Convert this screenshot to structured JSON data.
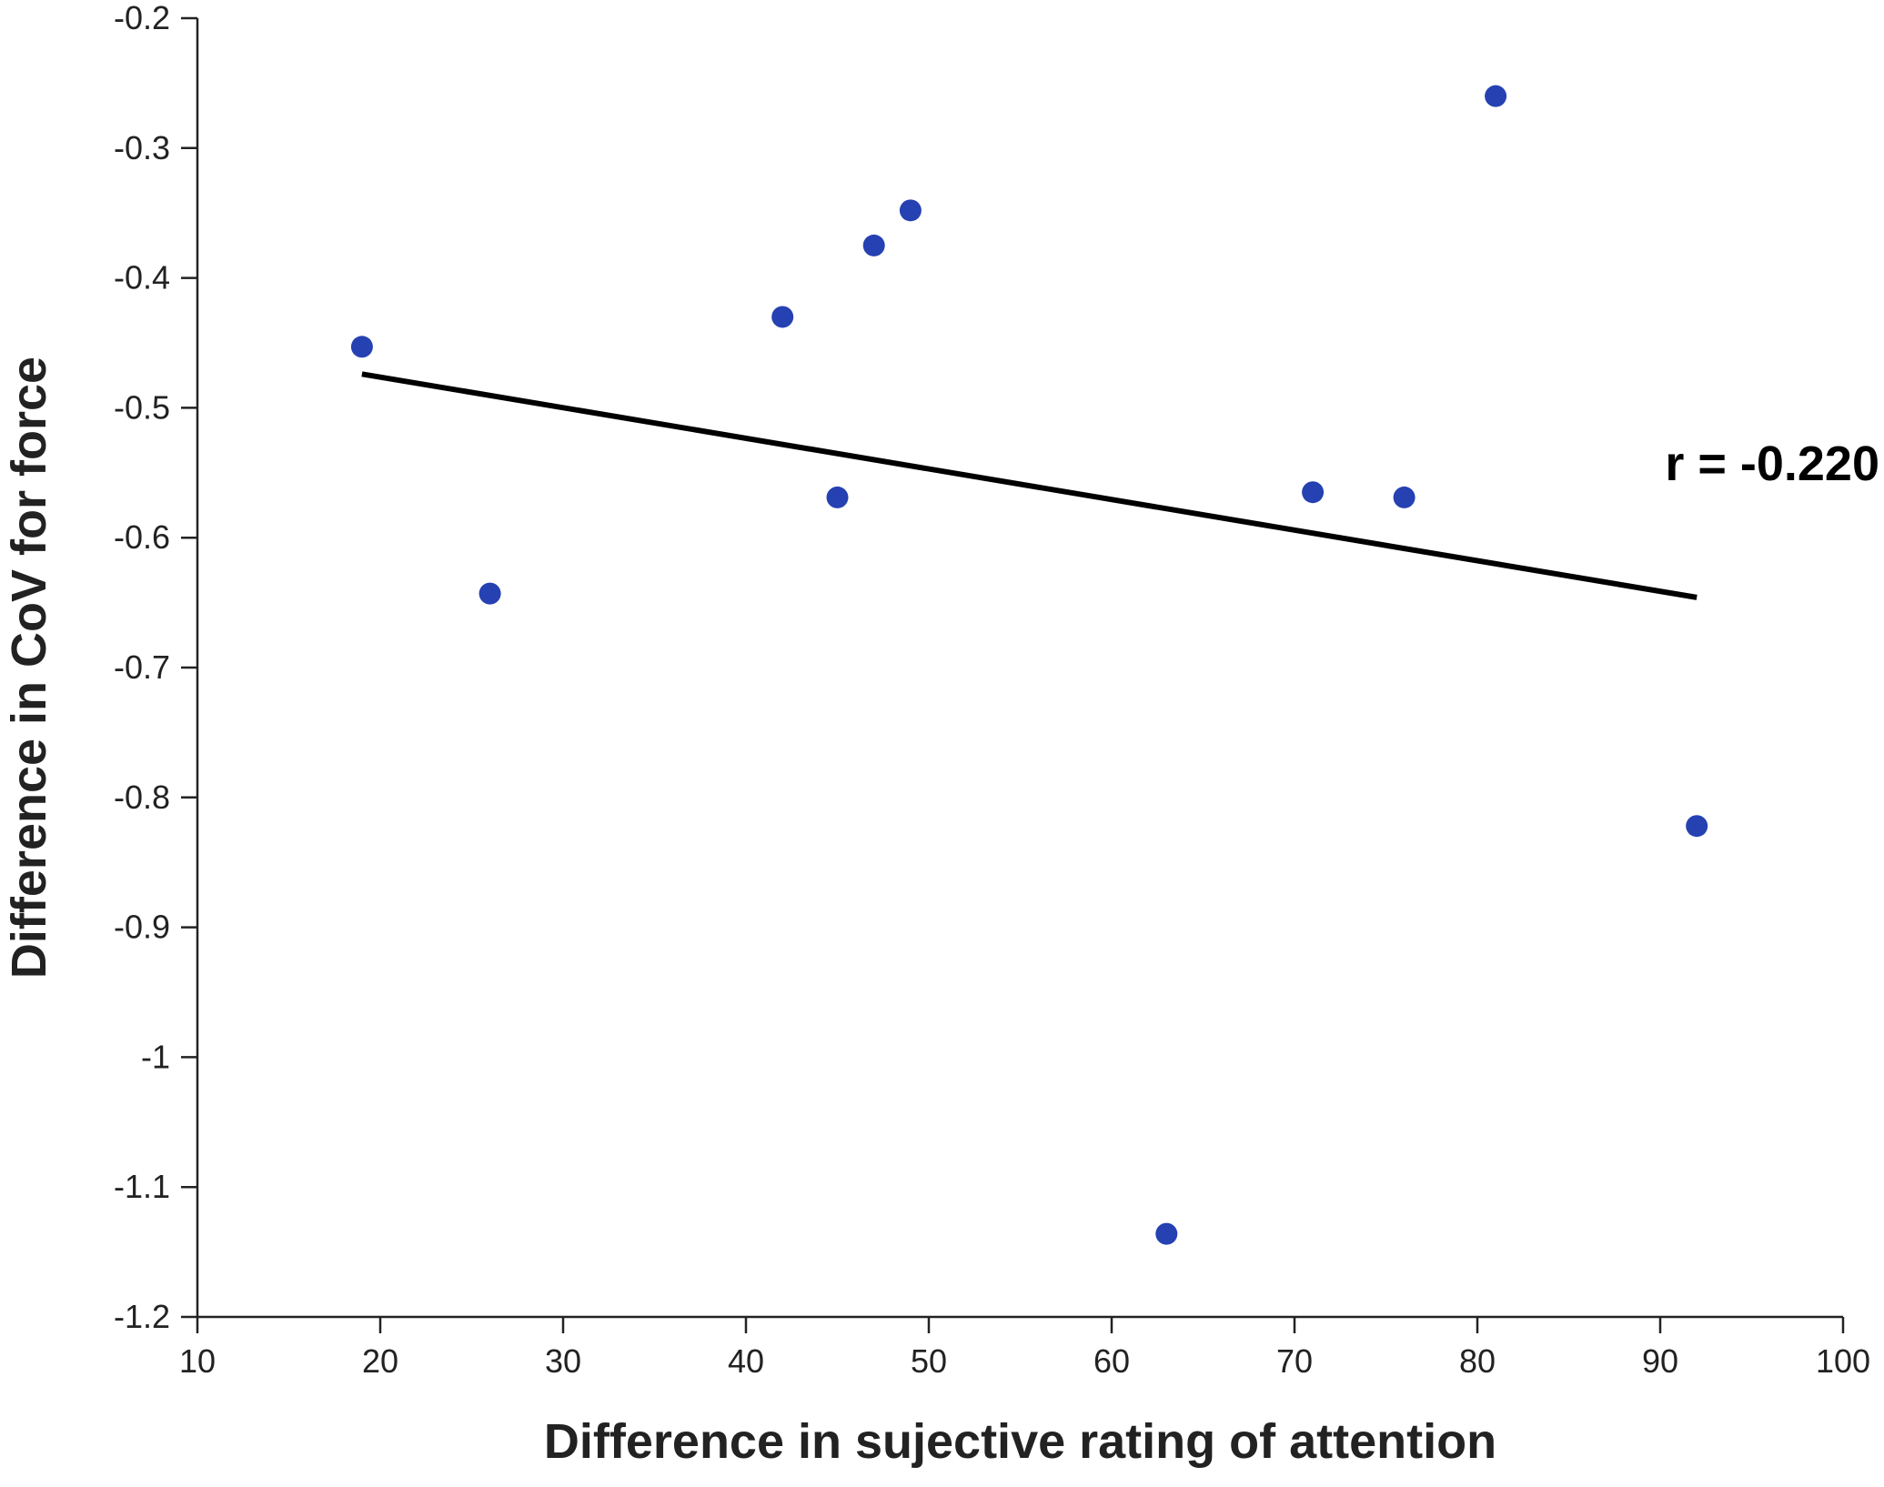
{
  "chart_data": {
    "type": "scatter",
    "title": "",
    "xlabel": "Difference in sujective rating of attention",
    "ylabel": "Difference in CoV for force",
    "xlim": [
      10,
      100
    ],
    "ylim": [
      -1.2,
      -0.2
    ],
    "x_ticks": [
      10,
      20,
      30,
      40,
      50,
      60,
      70,
      80,
      90,
      100
    ],
    "x_tick_labels": [
      "10",
      "20",
      "30",
      "40",
      "50",
      "60",
      "70",
      "80",
      "90",
      "100"
    ],
    "y_ticks": [
      -0.2,
      -0.3,
      -0.4,
      -0.5,
      -0.6,
      -0.7,
      -0.8,
      -0.9,
      -1.0,
      -1.1,
      -1.2
    ],
    "y_tick_labels": [
      "-0.2",
      "-0.3",
      "-0.4",
      "-0.5",
      "-0.6",
      "-0.7",
      "-0.8",
      "-0.9",
      "-1",
      "-1.1",
      "-1.2"
    ],
    "grid": false,
    "points": [
      {
        "x": 19,
        "y": -0.453
      },
      {
        "x": 26,
        "y": -0.643
      },
      {
        "x": 42,
        "y": -0.43
      },
      {
        "x": 45,
        "y": -0.569
      },
      {
        "x": 47,
        "y": -0.375
      },
      {
        "x": 49,
        "y": -0.348
      },
      {
        "x": 63,
        "y": -1.136
      },
      {
        "x": 71,
        "y": -0.565
      },
      {
        "x": 76,
        "y": -0.569
      },
      {
        "x": 81,
        "y": -0.26
      },
      {
        "x": 92,
        "y": -0.822
      }
    ],
    "fit_line": {
      "x": [
        19,
        92
      ],
      "y": [
        -0.474,
        -0.646
      ]
    },
    "annotation": "r = -0.220",
    "colors": {
      "points": "#2541b2",
      "fit_line": "#000000",
      "axes": "#222222"
    }
  }
}
